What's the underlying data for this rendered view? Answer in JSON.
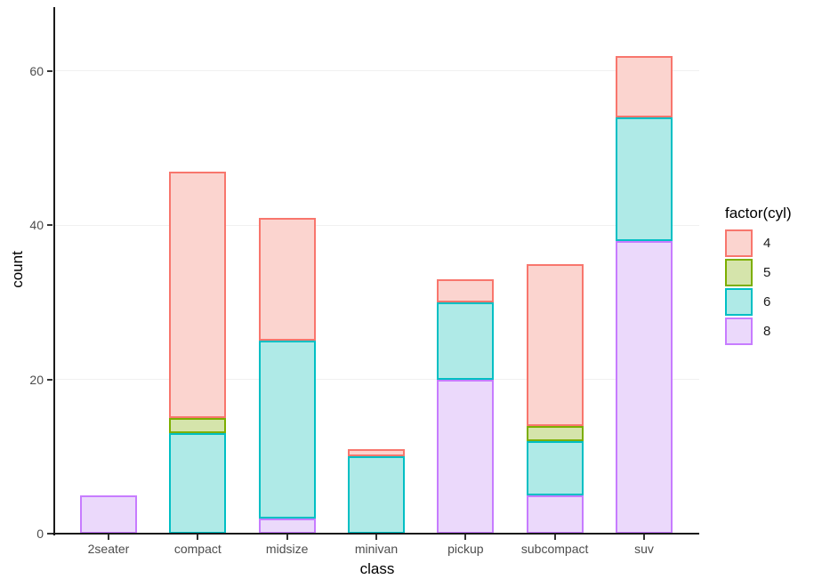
{
  "chart_data": {
    "type": "bar",
    "stacked": true,
    "title": "",
    "xlabel": "class",
    "ylabel": "count",
    "categories": [
      "2seater",
      "compact",
      "midsize",
      "minivan",
      "pickup",
      "subcompact",
      "suv"
    ],
    "series": [
      {
        "name": "4",
        "fill": "#FBD4CF",
        "stroke": "#F8766D",
        "values": [
          0,
          32,
          16,
          1,
          3,
          21,
          8
        ]
      },
      {
        "name": "5",
        "fill": "#D5E4AB",
        "stroke": "#7CAE00",
        "values": [
          0,
          2,
          0,
          0,
          0,
          2,
          0
        ]
      },
      {
        "name": "6",
        "fill": "#AFEAE7",
        "stroke": "#00BFC4",
        "values": [
          0,
          13,
          23,
          10,
          10,
          7,
          16
        ]
      },
      {
        "name": "8",
        "fill": "#EBD9FB",
        "stroke": "#C77CFF",
        "values": [
          5,
          0,
          2,
          0,
          20,
          5,
          38
        ]
      }
    ],
    "stack_order_bottom_to_top": [
      "8",
      "6",
      "5",
      "4"
    ],
    "totals": [
      5,
      47,
      41,
      11,
      33,
      35,
      62
    ],
    "y_ticks": [
      0,
      20,
      40,
      60
    ],
    "ylim": [
      0,
      68.3
    ],
    "legend_title": "factor(cyl)",
    "legend_position": "right",
    "grid": "major-y",
    "colors": {
      "axis_line": "#1a1a1a",
      "tick_text": "#4d4d4d",
      "title_text": "#000000",
      "gridline": "#f0f0f0"
    }
  }
}
